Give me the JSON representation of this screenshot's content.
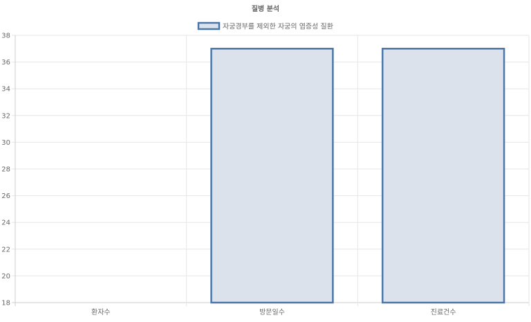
{
  "chart_data": {
    "type": "bar",
    "title": "질병 분석",
    "categories": [
      "환자수",
      "방문일수",
      "진료건수"
    ],
    "series": [
      {
        "name": "자궁경부를 제외한 자궁의 염증성 질환",
        "values": [
          null,
          37,
          37
        ]
      }
    ],
    "xlabel": "",
    "ylabel": "",
    "ylim": [
      18,
      38
    ],
    "yticks": [
      18,
      20,
      22,
      24,
      26,
      28,
      30,
      32,
      34,
      36,
      38
    ],
    "grid": true,
    "legend": "top",
    "colors": {
      "bar_fill": "#dbe2ec",
      "bar_border": "#4a76a8",
      "grid": "#e6e6e6",
      "text": "#666666"
    }
  }
}
